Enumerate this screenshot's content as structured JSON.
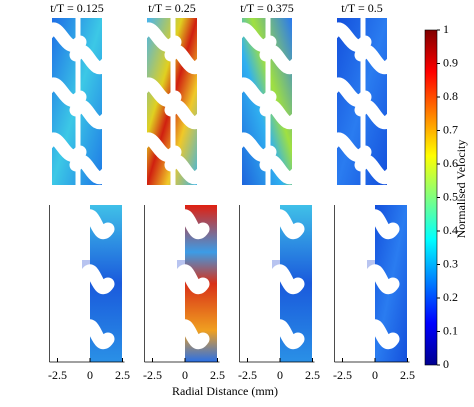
{
  "panels": [
    {
      "title": "t/T = 0.125"
    },
    {
      "title": "t/T = 0.25"
    },
    {
      "title": "t/T = 0.375"
    },
    {
      "title": "t/T = 0.5"
    }
  ],
  "x_axis": {
    "label": "Radial Distance (mm)",
    "ticks": [
      -2.5,
      0,
      2.5
    ]
  },
  "colorbar": {
    "label": "Normalised Velocity",
    "ticks": [
      0,
      0.1,
      0.2,
      0.3,
      0.4,
      0.5,
      0.6,
      0.7,
      0.8,
      0.9,
      1
    ]
  }
}
